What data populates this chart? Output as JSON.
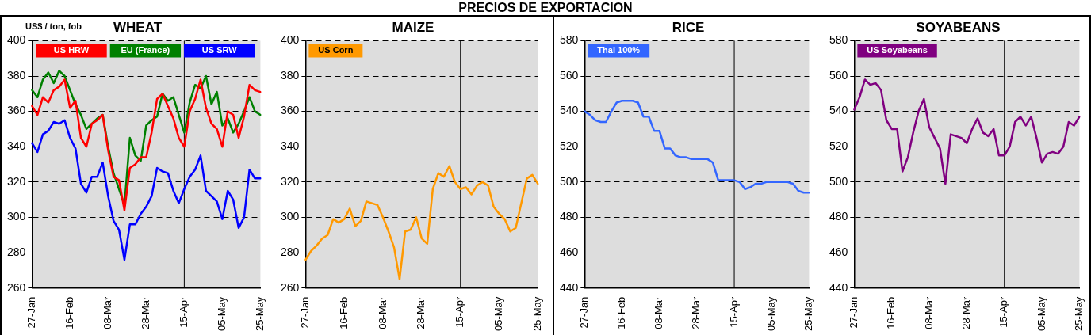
{
  "chart_data": [
    {
      "type": "line",
      "title": "WHEAT",
      "ylabel": "US$ / ton, fob",
      "annotations": [
        "PRECIOS DE EXPORTACION"
      ],
      "categories": [
        "27-Jan",
        null,
        null,
        null,
        null,
        null,
        null,
        "16-Feb",
        null,
        null,
        null,
        null,
        null,
        null,
        "08-Mar",
        null,
        null,
        null,
        null,
        null,
        null,
        "28-Mar",
        null,
        null,
        null,
        null,
        null,
        null,
        "15-Apr",
        null,
        null,
        null,
        null,
        null,
        null,
        "05-May",
        null,
        null,
        null,
        null,
        null,
        null,
        "25-May"
      ],
      "series": [
        {
          "name": "US HRW",
          "color": "#ff0000",
          "values": [
            363,
            358,
            368,
            365,
            372,
            374,
            378,
            362,
            366,
            345,
            340,
            353,
            355,
            358,
            338,
            323,
            321,
            304,
            328,
            330,
            334,
            334,
            348,
            367,
            370,
            363,
            356,
            345,
            340,
            360,
            367,
            378,
            362,
            353,
            350,
            340,
            360,
            358,
            345,
            357,
            375,
            372,
            371
          ]
        },
        {
          "name": "EU (France)",
          "color": "#008000",
          "values": [
            372,
            368,
            378,
            382,
            376,
            383,
            380,
            372,
            364,
            358,
            350,
            353,
            356,
            358,
            340,
            325,
            316,
            307,
            345,
            335,
            332,
            352,
            355,
            357,
            370,
            366,
            368,
            358,
            348,
            365,
            375,
            373,
            380,
            364,
            371,
            352,
            356,
            348,
            353,
            360,
            368,
            360,
            358
          ]
        },
        {
          "name": "US SRW",
          "color": "#0000ff",
          "values": [
            342,
            337,
            347,
            349,
            354,
            353,
            355,
            345,
            339,
            319,
            314,
            323,
            323,
            331,
            312,
            298,
            293,
            276,
            296,
            296,
            302,
            306,
            312,
            328,
            326,
            325,
            315,
            308,
            316,
            323,
            327,
            335,
            315,
            312,
            309,
            299,
            315,
            310,
            294,
            300,
            327,
            322,
            322
          ]
        }
      ],
      "ylim": [
        260,
        400
      ],
      "yticks": [
        260,
        280,
        300,
        320,
        340,
        360,
        380,
        400
      ],
      "grid": "y",
      "legend": "top",
      "ref_lines": [
        {
          "axis": "x",
          "value": "15-Apr",
          "color": "#000000"
        }
      ]
    },
    {
      "type": "line",
      "title": "MAIZE",
      "categories": [
        "27-Jan",
        null,
        null,
        null,
        null,
        null,
        null,
        "16-Feb",
        null,
        null,
        null,
        null,
        null,
        null,
        "08-Mar",
        null,
        null,
        null,
        null,
        null,
        null,
        "28-Mar",
        null,
        null,
        null,
        null,
        null,
        null,
        "15-Apr",
        null,
        null,
        null,
        null,
        null,
        null,
        "05-May",
        null,
        null,
        null,
        null,
        null,
        null,
        "25-May"
      ],
      "series": [
        {
          "name": "US Corn",
          "color": "#ff9900",
          "values": [
            276,
            281,
            284,
            288,
            290,
            299,
            297,
            299,
            305,
            295,
            298,
            309,
            308,
            307,
            300,
            292,
            283,
            265,
            292,
            293,
            300,
            288,
            285,
            316,
            325,
            323,
            329,
            320,
            316,
            317,
            313,
            318,
            320,
            318,
            306,
            302,
            299,
            292,
            294,
            308,
            322,
            324,
            319
          ]
        }
      ],
      "ylim": [
        260,
        400
      ],
      "yticks": [
        260,
        280,
        300,
        320,
        340,
        360,
        380,
        400
      ],
      "grid": "y",
      "legend": "top left",
      "ref_lines": [
        {
          "axis": "x",
          "value": "15-Apr",
          "color": "#000000"
        }
      ]
    },
    {
      "type": "line",
      "title": "RICE",
      "categories": [
        "27-Jan",
        null,
        null,
        null,
        null,
        null,
        null,
        "16-Feb",
        null,
        null,
        null,
        null,
        null,
        null,
        "08-Mar",
        null,
        null,
        null,
        null,
        null,
        null,
        "28-Mar",
        null,
        null,
        null,
        null,
        null,
        null,
        "15-Apr",
        null,
        null,
        null,
        null,
        null,
        null,
        "05-May",
        null,
        null,
        null,
        null,
        null,
        null,
        "25-May"
      ],
      "series": [
        {
          "name": "Thai 100%",
          "color": "#3366ff",
          "values": [
            540,
            538,
            535,
            534,
            534,
            540,
            545,
            546,
            546,
            546,
            545,
            537,
            537,
            529,
            529,
            519,
            519,
            515,
            514,
            514,
            513,
            513,
            513,
            513,
            511,
            501,
            501,
            501,
            501,
            500,
            496,
            497,
            499,
            499,
            500,
            500,
            500,
            500,
            500,
            499,
            495,
            494,
            494
          ]
        }
      ],
      "ylim": [
        440,
        580
      ],
      "yticks": [
        440,
        460,
        480,
        500,
        520,
        540,
        560,
        580
      ],
      "grid": "y",
      "legend": "top left",
      "ref_lines": [
        {
          "axis": "x",
          "value": "15-Apr",
          "color": "#000000"
        }
      ]
    },
    {
      "type": "line",
      "title": "SOYABEANS",
      "categories": [
        "27-Jan",
        null,
        null,
        null,
        null,
        null,
        null,
        "16-Feb",
        null,
        null,
        null,
        null,
        null,
        null,
        "08-Mar",
        null,
        null,
        null,
        null,
        null,
        null,
        "28-Mar",
        null,
        null,
        null,
        null,
        null,
        null,
        "15-Apr",
        null,
        null,
        null,
        null,
        null,
        null,
        "05-May",
        null,
        null,
        null,
        null,
        null,
        null,
        "25-May"
      ],
      "series": [
        {
          "name": "US Soyabeans",
          "color": "#800080",
          "values": [
            541,
            548,
            558,
            555,
            556,
            552,
            535,
            530,
            530,
            506,
            514,
            528,
            540,
            547,
            531,
            525,
            519,
            499,
            527,
            526,
            525,
            522,
            530,
            536,
            528,
            526,
            530,
            515,
            515,
            520,
            534,
            537,
            532,
            537,
            525,
            511,
            516,
            517,
            516,
            520,
            534,
            532,
            537
          ]
        }
      ],
      "ylim": [
        440,
        580
      ],
      "yticks": [
        440,
        460,
        480,
        500,
        520,
        540,
        560,
        580
      ],
      "grid": "y",
      "legend": "top left",
      "ref_lines": [
        {
          "axis": "x",
          "value": "15-Apr",
          "color": "#000000"
        }
      ]
    }
  ]
}
